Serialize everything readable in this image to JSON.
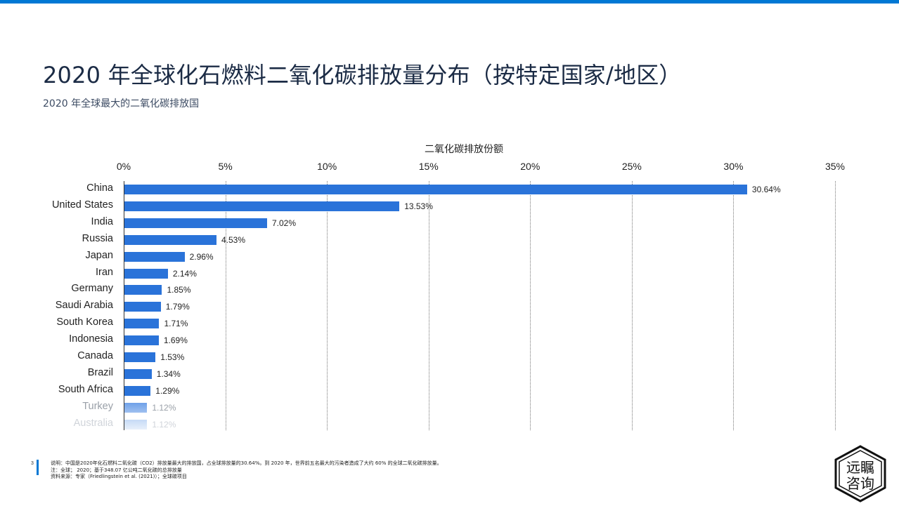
{
  "header": {
    "title": "2020 年全球化石燃料二氧化碳排放量分布（按特定国家/地区）",
    "subtitle": "2020 年全球最大的二氧化碳排放国"
  },
  "chart_data": {
    "type": "bar",
    "orientation": "horizontal",
    "title": "二氧化碳排放份额",
    "xlabel": "二氧化碳排放份额",
    "ylabel": "",
    "xlim": [
      0,
      35
    ],
    "ticks": [
      "0%",
      "5%",
      "10%",
      "15%",
      "20%",
      "25%",
      "30%",
      "35%"
    ],
    "grid": "vertical dotted",
    "categories": [
      "China",
      "United States",
      "India",
      "Russia",
      "Japan",
      "Iran",
      "Germany",
      "Saudi Arabia",
      "South Korea",
      "Indonesia",
      "Canada",
      "Brazil",
      "South Africa",
      "Turkey",
      "Australia"
    ],
    "values": [
      30.64,
      13.53,
      7.02,
      4.53,
      2.96,
      2.14,
      1.85,
      1.79,
      1.71,
      1.69,
      1.53,
      1.34,
      1.29,
      1.12,
      1.12
    ],
    "value_labels": [
      "30.64%",
      "13.53%",
      "7.02%",
      "4.53%",
      "2.96%",
      "2.14%",
      "1.85%",
      "1.79%",
      "1.71%",
      "1.69%",
      "1.53%",
      "1.34%",
      "1.29%",
      "1.12%",
      "1.12%"
    ],
    "bar_color": "#2a73d9"
  },
  "footer": {
    "page_number": "3",
    "note1": "说明：中国是2020年化石燃料二氧化碳（CO2）排放量最大的排放国，占全球排放量的30.64%。到 2020 年，世界前五名最大的污染者造成了大约 60% 的全球二氧化碳排放量。",
    "note2": "注：全球； 2020；基于348.07 亿公吨二氧化碳的总排放量",
    "note3": "资料来源：专家（Friedlingstein et al. (2021)）；全球碳项目"
  },
  "logo": {
    "line1": "远瞩",
    "line2": "咨询"
  },
  "colors": {
    "accent": "#0078d4",
    "bar": "#2a73d9",
    "title": "#1b2b45"
  }
}
